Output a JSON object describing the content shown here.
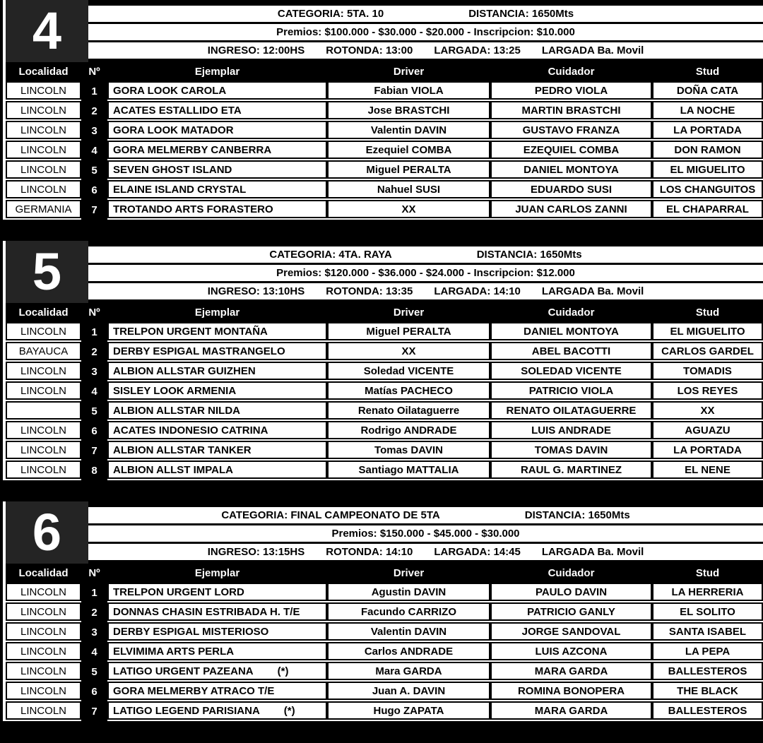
{
  "table_headers": {
    "localidad": "Localidad",
    "num": "Nº",
    "ejemplar": "Ejemplar",
    "driver": "Driver",
    "cuidador": "Cuidador",
    "stud": "Stud"
  },
  "races": [
    {
      "number": "4",
      "categoria": "CATEGORIA: 5TA. 10",
      "distancia": "DISTANCIA: 1650Mts",
      "premios": "Premios: $100.000 - $30.000 - $20.000 - Inscripcion: $10.000",
      "ingreso": "INGRESO: 12:00HS",
      "rotonda": "ROTONDA: 13:00",
      "largada": "LARGADA: 13:25",
      "largada_extra": "LARGADA Ba. Movil",
      "rows": [
        {
          "localidad": "LINCOLN",
          "num": "1",
          "ejemplar": "GORA LOOK CAROLA",
          "nota": "",
          "driver": "Fabian VIOLA",
          "cuidador": "PEDRO VIOLA",
          "stud": "DOÑA CATA"
        },
        {
          "localidad": "LINCOLN",
          "num": "2",
          "ejemplar": "ACATES ESTALLIDO ETA",
          "nota": "",
          "driver": "Jose BRASTCHI",
          "cuidador": "MARTIN BRASTCHI",
          "stud": "LA NOCHE"
        },
        {
          "localidad": "LINCOLN",
          "num": "3",
          "ejemplar": "GORA LOOK MATADOR",
          "nota": "",
          "driver": "Valentin DAVIN",
          "cuidador": "GUSTAVO FRANZA",
          "stud": "LA PORTADA"
        },
        {
          "localidad": "LINCOLN",
          "num": "4",
          "ejemplar": "GORA MELMERBY CANBERRA",
          "nota": "",
          "driver": "Ezequiel COMBA",
          "cuidador": "EZEQUIEL COMBA",
          "stud": "DON RAMON"
        },
        {
          "localidad": "LINCOLN",
          "num": "5",
          "ejemplar": "SEVEN GHOST ISLAND",
          "nota": "",
          "driver": "Miguel PERALTA",
          "cuidador": "DANIEL MONTOYA",
          "stud": "EL MIGUELITO"
        },
        {
          "localidad": "LINCOLN",
          "num": "6",
          "ejemplar": "ELAINE ISLAND CRYSTAL",
          "nota": "",
          "driver": "Nahuel SUSI",
          "cuidador": "EDUARDO SUSI",
          "stud": "LOS CHANGUITOS"
        },
        {
          "localidad": "GERMANIA",
          "num": "7",
          "ejemplar": "TROTANDO ARTS FORASTERO",
          "nota": "",
          "driver": "XX",
          "cuidador": "JUAN CARLOS ZANNI",
          "stud": "EL CHAPARRAL"
        }
      ]
    },
    {
      "number": "5",
      "categoria": "CATEGORIA: 4TA. RAYA",
      "distancia": "DISTANCIA: 1650Mts",
      "premios": "Premios: $120.000 - $36.000 - $24.000 - Inscripcion: $12.000",
      "ingreso": "INGRESO: 13:10HS",
      "rotonda": "ROTONDA: 13:35",
      "largada": "LARGADA: 14:10",
      "largada_extra": "LARGADA Ba. Movil",
      "rows": [
        {
          "localidad": "LINCOLN",
          "num": "1",
          "ejemplar": "TRELPON URGENT MONTAÑA",
          "nota": "",
          "driver": "Miguel PERALTA",
          "cuidador": "DANIEL MONTOYA",
          "stud": "EL MIGUELITO"
        },
        {
          "localidad": "BAYAUCA",
          "num": "2",
          "ejemplar": "DERBY ESPIGAL MASTRANGELO",
          "nota": "",
          "driver": "XX",
          "cuidador": "ABEL BACOTTI",
          "stud": "CARLOS GARDEL"
        },
        {
          "localidad": "LINCOLN",
          "num": "3",
          "ejemplar": "ALBION ALLSTAR GUIZHEN",
          "nota": "",
          "driver": "Soledad VICENTE",
          "cuidador": "SOLEDAD VICENTE",
          "stud": "TOMADIS"
        },
        {
          "localidad": "LINCOLN",
          "num": "4",
          "ejemplar": "SISLEY LOOK ARMENIA",
          "nota": "",
          "driver": "Matías PACHECO",
          "cuidador": "PATRICIO VIOLA",
          "stud": "LOS REYES"
        },
        {
          "localidad": "",
          "num": "5",
          "ejemplar": "ALBION ALLSTAR NILDA",
          "nota": "",
          "driver": "Renato Oilataguerre",
          "cuidador": "RENATO OILATAGUERRE",
          "stud": "XX"
        },
        {
          "localidad": "LINCOLN",
          "num": "6",
          "ejemplar": "ACATES INDONESIO CATRINA",
          "nota": "",
          "driver": "Rodrigo ANDRADE",
          "cuidador": "LUIS ANDRADE",
          "stud": "AGUAZU"
        },
        {
          "localidad": "LINCOLN",
          "num": "7",
          "ejemplar": "ALBION ALLSTAR TANKER",
          "nota": "",
          "driver": "Tomas DAVIN",
          "cuidador": "TOMAS DAVIN",
          "stud": "LA PORTADA"
        },
        {
          "localidad": "LINCOLN",
          "num": "8",
          "ejemplar": "ALBION ALLST IMPALA",
          "nota": "",
          "driver": "Santiago MATTALIA",
          "cuidador": "RAUL G. MARTINEZ",
          "stud": "EL NENE"
        }
      ]
    },
    {
      "number": "6",
      "categoria": "CATEGORIA: FINAL CAMPEONATO DE 5TA",
      "distancia": "DISTANCIA: 1650Mts",
      "premios": "Premios: $150.000 - $45.000 - $30.000",
      "ingreso": "INGRESO: 13:15HS",
      "rotonda": "ROTONDA: 14:10",
      "largada": "LARGADA: 14:45",
      "largada_extra": "LARGADA Ba. Movil",
      "rows": [
        {
          "localidad": "LINCOLN",
          "num": "1",
          "ejemplar": "TRELPON URGENT LORD",
          "nota": "",
          "driver": "Agustin DAVIN",
          "cuidador": "PAULO DAVIN",
          "stud": "LA HERRERIA"
        },
        {
          "localidad": "LINCOLN",
          "num": "2",
          "ejemplar": "DONNAS CHASIN ESTRIBADA H. T/E",
          "nota": "",
          "driver": "Facundo CARRIZO",
          "cuidador": "PATRICIO GANLY",
          "stud": "EL SOLITO"
        },
        {
          "localidad": "LINCOLN",
          "num": "3",
          "ejemplar": "DERBY ESPIGAL MISTERIOSO",
          "nota": "",
          "driver": "Valentin DAVIN",
          "cuidador": "JORGE SANDOVAL",
          "stud": "SANTA ISABEL"
        },
        {
          "localidad": "LINCOLN",
          "num": "4",
          "ejemplar": "ELVIMIMA ARTS PERLA",
          "nota": "",
          "driver": "Carlos ANDRADE",
          "cuidador": "LUIS AZCONA",
          "stud": "LA PEPA"
        },
        {
          "localidad": "LINCOLN",
          "num": "5",
          "ejemplar": "LATIGO URGENT PAZEANA",
          "nota": "(*)",
          "driver": "Mara GARDA",
          "cuidador": "MARA GARDA",
          "stud": "BALLESTEROS"
        },
        {
          "localidad": "LINCOLN",
          "num": "6",
          "ejemplar": "GORA MELMERBY ATRACO T/E",
          "nota": "",
          "driver": "Juan A. DAVIN",
          "cuidador": "ROMINA BONOPERA",
          "stud": "THE BLACK"
        },
        {
          "localidad": "LINCOLN",
          "num": "7",
          "ejemplar": "LATIGO LEGEND PARISIANA",
          "nota": "(*)",
          "driver": "Hugo ZAPATA",
          "cuidador": "MARA GARDA",
          "stud": "BALLESTEROS"
        }
      ]
    }
  ]
}
